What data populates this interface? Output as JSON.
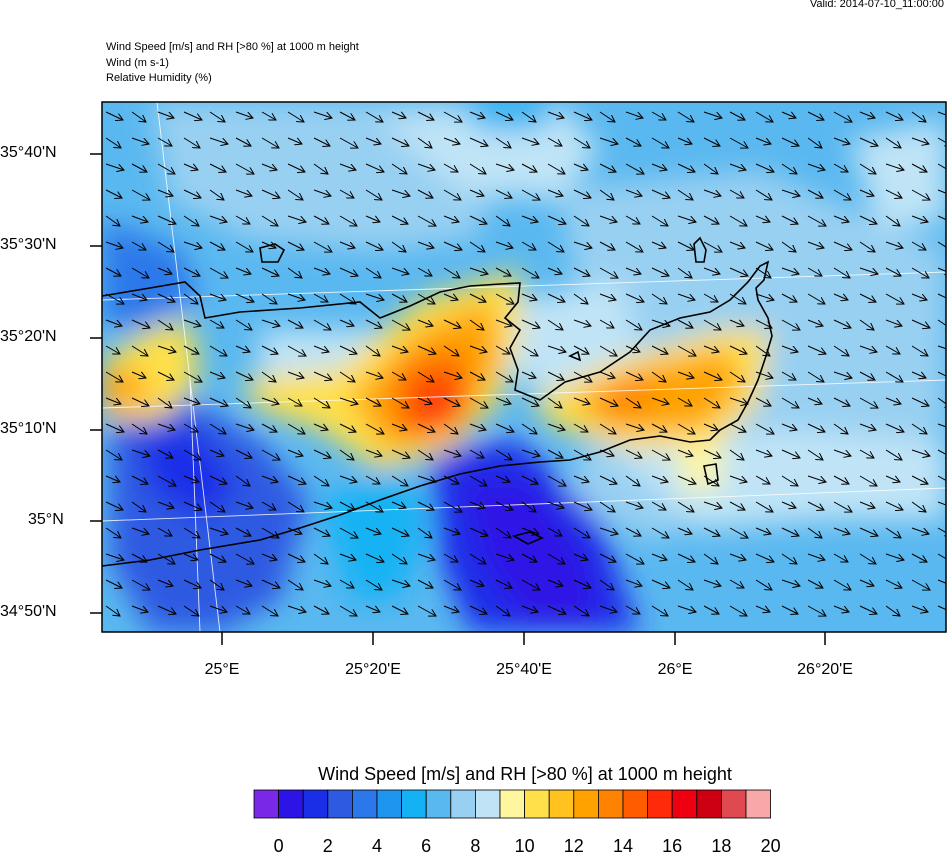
{
  "valid_time": "Valid: 2014-07-10_11:00:00",
  "header": {
    "line1": "Wind Speed [m/s] and RH [>80 %] at 1000 m height",
    "line2": "Wind   (m s-1)",
    "line3": "Relative Humidity   (%)"
  },
  "map": {
    "region": "Crete",
    "lat_labels": [
      "35°40'N",
      "35°30'N",
      "35°20'N",
      "35°10'N",
      "35°N",
      "34°50'N"
    ],
    "lon_labels": [
      "25°E",
      "25°20'E",
      "25°40'E",
      "26°E",
      "26°20'E"
    ],
    "wind_direction": "north-west to south-east",
    "colors": {
      "coast": "#000000",
      "graticule": "#ffffff"
    }
  },
  "colorbar": {
    "title": "Wind Speed [m/s] and RH [>80 %] at 1000 m height",
    "tick_labels": [
      "0",
      "2",
      "4",
      "6",
      "8",
      "10",
      "12",
      "14",
      "16",
      "18",
      "20"
    ],
    "colors": [
      "#7a28e8",
      "#2d14e6",
      "#1a2ee8",
      "#2e5ae2",
      "#2c78ea",
      "#1e96f0",
      "#14b2f4",
      "#5ab8f0",
      "#98d0f2",
      "#c0e4f6",
      "#fff6a0",
      "#ffe04a",
      "#ffc21e",
      "#ffa200",
      "#ff8200",
      "#ff5c00",
      "#ff2a0a",
      "#ee0010",
      "#cc0012",
      "#de4a50",
      "#f8a8a8"
    ]
  }
}
